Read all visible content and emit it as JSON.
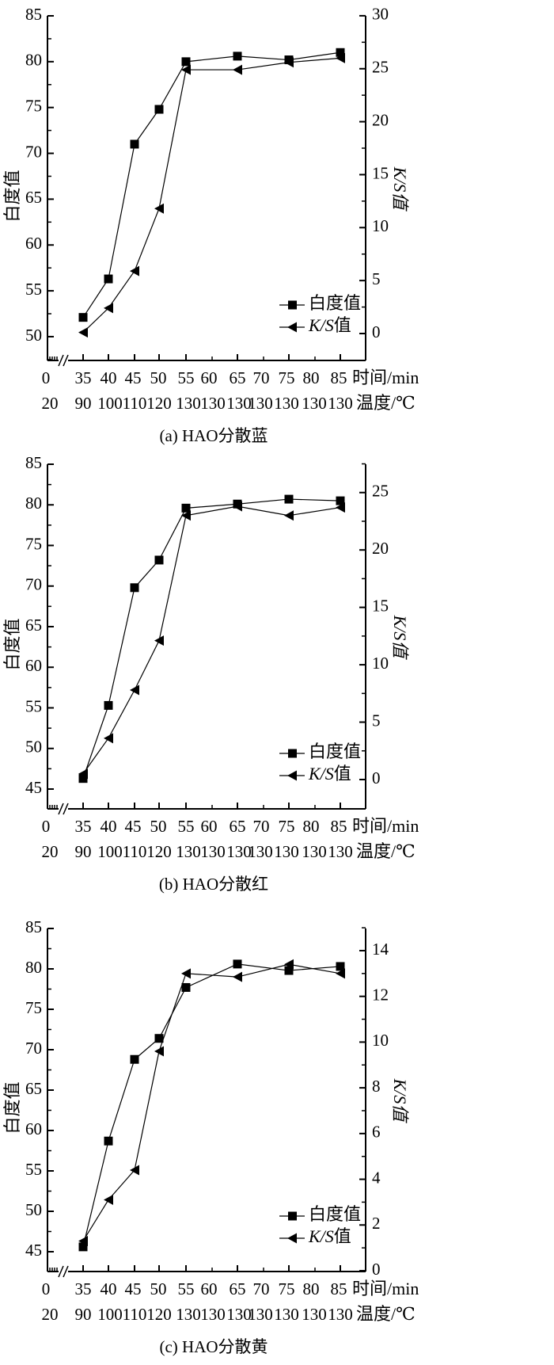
{
  "chart_data": [
    {
      "type": "line",
      "title": "(a) HAO分散蓝",
      "ylabel_left": "白度值",
      "ylabel_right": "K/S值",
      "xlabel_time": "时间/min",
      "xlabel_temp": "温度/℃",
      "time_ticks": [
        "0",
        "35",
        "40",
        "45",
        "50",
        "55",
        "60",
        "65",
        "70",
        "75",
        "80",
        "85"
      ],
      "temp_ticks": [
        "20",
        "90",
        "100",
        "110",
        "120",
        "130",
        "130",
        "130",
        "130",
        "130",
        "130",
        "130"
      ],
      "x_axis_break": true,
      "ylim_left": [
        47.4,
        85
      ],
      "ylim_right": [
        -2.5,
        30
      ],
      "yticks_left": [
        50,
        55,
        60,
        65,
        70,
        75,
        80,
        85
      ],
      "yticks_right": [
        0,
        5,
        10,
        15,
        20,
        25,
        30
      ],
      "legend_position": "bottom-right",
      "x": [
        35,
        40,
        45,
        50,
        55,
        65,
        75,
        85
      ],
      "series": [
        {
          "name": "白度值",
          "axis": "left",
          "marker": "square",
          "values": [
            52.1,
            56.3,
            71.0,
            74.8,
            80.0,
            80.6,
            80.2,
            81.0
          ]
        },
        {
          "name": "K/S值",
          "axis": "right",
          "marker": "triangle-left",
          "values": [
            0.1,
            2.4,
            5.9,
            11.8,
            24.9,
            24.9,
            25.6,
            26.0
          ]
        }
      ]
    },
    {
      "type": "line",
      "title": "(b) HAO分散红",
      "ylabel_left": "白度值",
      "ylabel_right": "K/S值",
      "xlabel_time": "时间/min",
      "xlabel_temp": "温度/℃",
      "time_ticks": [
        "0",
        "35",
        "40",
        "45",
        "50",
        "55",
        "60",
        "65",
        "70",
        "75",
        "80",
        "85"
      ],
      "temp_ticks": [
        "20",
        "90",
        "100",
        "110",
        "120",
        "130",
        "130",
        "130",
        "130",
        "130",
        "130",
        "130"
      ],
      "x_axis_break": true,
      "ylim_left": [
        42.6,
        85
      ],
      "ylim_right": [
        -2.5,
        27.6
      ],
      "yticks_left": [
        45,
        50,
        55,
        60,
        65,
        70,
        75,
        80,
        85
      ],
      "yticks_right": [
        0,
        5,
        10,
        15,
        20,
        25
      ],
      "legend_position": "bottom-right",
      "x": [
        35,
        40,
        45,
        50,
        55,
        65,
        75,
        85
      ],
      "series": [
        {
          "name": "白度值",
          "axis": "left",
          "marker": "square",
          "values": [
            46.3,
            55.3,
            69.8,
            73.2,
            79.6,
            80.1,
            80.7,
            80.5
          ]
        },
        {
          "name": "K/S值",
          "axis": "right",
          "marker": "triangle-left",
          "values": [
            0.5,
            3.6,
            7.8,
            12.1,
            23.0,
            23.8,
            23.0,
            23.7
          ]
        }
      ]
    },
    {
      "type": "line",
      "title": "(c) HAO分散黄",
      "ylabel_left": "白度值",
      "ylabel_right": "K/S值",
      "xlabel_time": "时间/min",
      "xlabel_temp": "温度/℃",
      "time_ticks": [
        "0",
        "35",
        "40",
        "45",
        "50",
        "55",
        "60",
        "65",
        "70",
        "75",
        "80",
        "85"
      ],
      "temp_ticks": [
        "20",
        "90",
        "100",
        "110",
        "120",
        "130",
        "130",
        "130",
        "130",
        "130",
        "130",
        "130"
      ],
      "x_axis_break": true,
      "ylim_left": [
        42.5,
        85
      ],
      "ylim_right": [
        0,
        15
      ],
      "yticks_left": [
        45,
        50,
        55,
        60,
        65,
        70,
        75,
        80,
        85
      ],
      "yticks_right": [
        0,
        2,
        4,
        6,
        8,
        10,
        12,
        14
      ],
      "legend_position": "bottom-right",
      "x": [
        35,
        40,
        45,
        50,
        55,
        65,
        75,
        85
      ],
      "series": [
        {
          "name": "白度值",
          "axis": "left",
          "marker": "square",
          "values": [
            45.6,
            58.7,
            68.8,
            71.4,
            77.7,
            80.6,
            79.8,
            80.3
          ]
        },
        {
          "name": "K/S值",
          "axis": "right",
          "marker": "triangle-left",
          "values": [
            1.3,
            3.1,
            4.4,
            9.6,
            13.0,
            12.85,
            13.4,
            13.0
          ]
        }
      ]
    }
  ]
}
